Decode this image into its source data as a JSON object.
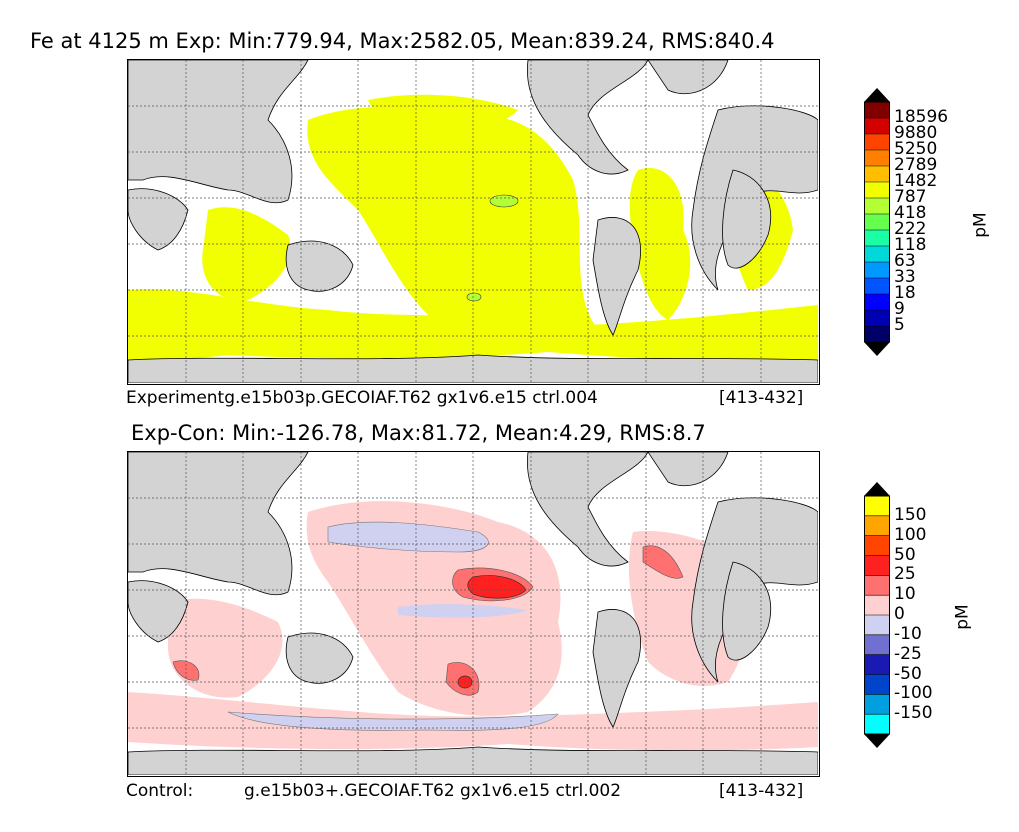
{
  "chart_data": [
    {
      "type": "heatmap",
      "title": "Fe at 4125 m Exp: Min:779.94, Max:2582.05, Mean:839.24, RMS:840.4",
      "footer_left": "Experimentg.e15b03p.GECOIAF.T62 gx1v6.e15 ctrl.004",
      "footer_right": "[413-432]",
      "colorbar_unit": "pM",
      "colorbar_levels": [
        "18596",
        "9880",
        "5250",
        "2789",
        "1482",
        "787",
        "418",
        "222",
        "118",
        "63",
        "33",
        "18",
        "9",
        "5"
      ],
      "colorbar_colors": [
        "#800000",
        "#d40000",
        "#ff4400",
        "#ff7f00",
        "#ffbf00",
        "#f2ff00",
        "#b3ff33",
        "#66ff4d",
        "#1affa3",
        "#00d9d9",
        "#0099ff",
        "#0055ff",
        "#0000ff",
        "#0000b3",
        "#000066"
      ],
      "colorbar_extend": "both",
      "dominant_value_color": "#f2ff00"
    },
    {
      "type": "heatmap",
      "title": "Exp-Con: Min:-126.78, Max:81.72, Mean:4.29, RMS:8.7",
      "footer_left": "Control:",
      "footer_mid": "g.e15b03+.GECOIAF.T62 gx1v6.e15 ctrl.002",
      "footer_right": "[413-432]",
      "colorbar_unit": "pM",
      "colorbar_levels": [
        "150",
        "100",
        "50",
        "25",
        "10",
        "0",
        "-10",
        "-25",
        "-50",
        "-100",
        "-150"
      ],
      "colorbar_colors": [
        "#ffff00",
        "#ffa500",
        "#ff4500",
        "#ff2020",
        "#ff7070",
        "#ffd0d0",
        "#d0d0f0",
        "#7070d0",
        "#1a1ab3",
        "#0044cc",
        "#00a0e0",
        "#00ffff"
      ],
      "colorbar_extend": "both"
    }
  ],
  "colors": {
    "land": "#d3d3d3",
    "ocean_blank": "#ffffff",
    "grid": "#555555"
  }
}
